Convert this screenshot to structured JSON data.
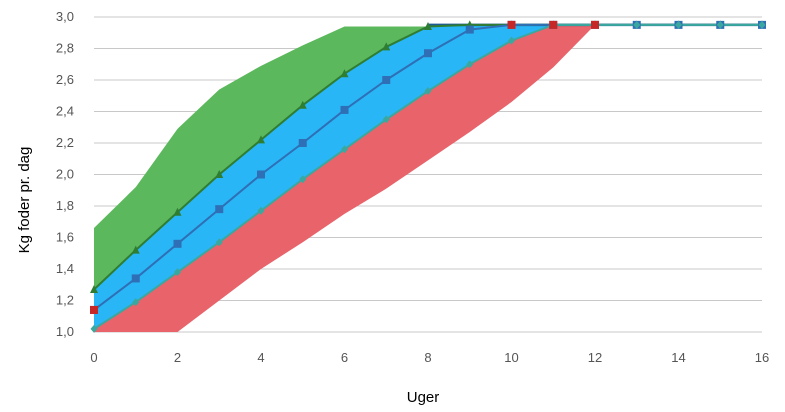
{
  "chart_data": {
    "type": "area",
    "xlabel": "Uger",
    "ylabel": "Kg foder pr. dag",
    "xlim": [
      0,
      16
    ],
    "ylim": [
      1.0,
      3.0
    ],
    "xticks": [
      "0",
      "2",
      "4",
      "6",
      "8",
      "10",
      "12",
      "14",
      "16"
    ],
    "yticks": [
      "1,0",
      "1,2",
      "1,4",
      "1,6",
      "1,8",
      "2,0",
      "2,2",
      "2,4",
      "2,6",
      "2,8",
      "3,0"
    ],
    "grid": "horizontal",
    "bands": [
      {
        "color": "#5cb85c",
        "x": [
          0,
          1,
          2,
          3,
          4,
          5,
          6,
          7,
          8
        ],
        "upper": [
          1.66,
          1.92,
          2.29,
          2.54,
          2.69,
          2.82,
          2.94,
          2.94,
          2.94
        ],
        "lower": [
          1.27,
          1.52,
          1.76,
          2.0,
          2.22,
          2.44,
          2.64,
          2.81,
          2.94
        ]
      },
      {
        "color": "#29b6f6",
        "x": [
          0,
          1,
          2,
          3,
          4,
          5,
          6,
          7,
          8,
          9,
          10,
          11
        ],
        "upper": [
          1.27,
          1.52,
          1.76,
          2.0,
          2.22,
          2.44,
          2.64,
          2.81,
          2.94,
          2.95,
          2.95,
          2.95
        ],
        "lower": [
          1.02,
          1.19,
          1.38,
          1.57,
          1.77,
          1.97,
          2.16,
          2.35,
          2.53,
          2.7,
          2.85,
          2.95
        ]
      },
      {
        "color": "#e8636a",
        "x": [
          0,
          1,
          2,
          3,
          4,
          5,
          6,
          7,
          8,
          9,
          10,
          11,
          12
        ],
        "upper": [
          1.02,
          1.19,
          1.38,
          1.57,
          1.77,
          1.97,
          2.16,
          2.35,
          2.53,
          2.7,
          2.85,
          2.95,
          2.95
        ],
        "lower": [
          1.0,
          1.0,
          1.0,
          1.2,
          1.4,
          1.57,
          1.75,
          1.91,
          2.09,
          2.27,
          2.46,
          2.68,
          2.95
        ]
      }
    ],
    "series": [
      {
        "marker": "triangle",
        "color": "#2e7d32",
        "x": [
          0,
          1,
          2,
          3,
          4,
          5,
          6,
          7,
          8,
          9,
          10,
          11,
          12,
          13,
          14,
          15,
          16
        ],
        "values": [
          1.27,
          1.52,
          1.76,
          2.0,
          2.22,
          2.44,
          2.64,
          2.81,
          2.94,
          2.95,
          2.95,
          2.95,
          2.95,
          2.95,
          2.95,
          2.95,
          2.95
        ]
      },
      {
        "marker": "square",
        "color": "#2f6fb5",
        "x": [
          0,
          1,
          2,
          3,
          4,
          5,
          6,
          7,
          8,
          9,
          10,
          11,
          12,
          13,
          14,
          15,
          16
        ],
        "values": [
          1.14,
          1.34,
          1.56,
          1.78,
          2.0,
          2.2,
          2.41,
          2.6,
          2.77,
          2.92,
          2.95,
          2.95,
          2.95,
          2.95,
          2.95,
          2.95,
          2.95
        ]
      },
      {
        "marker": "diamond",
        "color": "#3aa89f",
        "x": [
          0,
          1,
          2,
          3,
          4,
          5,
          6,
          7,
          8,
          9,
          10,
          11,
          12,
          13,
          14,
          15,
          16
        ],
        "values": [
          1.02,
          1.19,
          1.38,
          1.57,
          1.77,
          1.97,
          2.16,
          2.35,
          2.53,
          2.7,
          2.85,
          2.95,
          2.95,
          2.95,
          2.95,
          2.95,
          2.95
        ]
      }
    ],
    "extra_points": [
      {
        "marker": "square",
        "color": "#c62828",
        "x": 0,
        "value": 1.14
      },
      {
        "marker": "square",
        "color": "#c62828",
        "x": 10,
        "value": 2.95
      },
      {
        "marker": "square",
        "color": "#c62828",
        "x": 11,
        "value": 2.95
      },
      {
        "marker": "square",
        "color": "#c62828",
        "x": 12,
        "value": 2.95
      }
    ],
    "top_line": {
      "color": "#1e5a96",
      "x": [
        8,
        16
      ],
      "values": [
        2.95,
        2.95
      ]
    }
  }
}
